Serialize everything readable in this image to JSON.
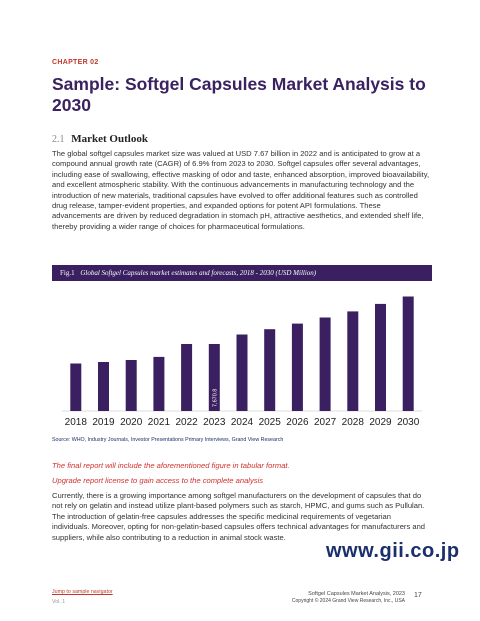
{
  "header": {
    "chapter": "CHAPTER 02",
    "title": "Sample: Softgel Capsules Market Analysis to 2030"
  },
  "section": {
    "number": "2.1",
    "heading": "Market Outlook"
  },
  "paragraphs": {
    "intro": "The global softgel capsules market size was valued at USD 7.67 billion in 2022 and is anticipated to grow at a compound annual growth rate (CAGR) of 6.9% from 2023 to 2030. Softgel capsules offer several advantages, including ease of swallowing, effective masking of odor and taste, enhanced absorption, improved bioavailability, and excellent atmospheric stability. With the continuous advancements in manufacturing technology and the introduction of new materials, traditional capsules have evolved to offer additional features such as controlled drug release, tamper-evident properties, and expanded options for potent API formulations. These advancements are driven by reduced degradation in stomach pH, attractive aesthetics, and extended shelf life, thereby providing a wider range of choices for pharmaceutical formulations.",
    "gelatin": "Currently, there is a growing importance among softgel manufacturers on the development of capsules that do not rely on gelatin and instead utilize plant-based polymers such as starch, HPMC, and gums such as Pullulan. The introduction of gelatin-free capsules addresses the specific medicinal requirements of vegetarian individuals. Moreover, opting for non-gelatin-based capsules offers technical advantages for manufacturers and suppliers, while also contributing to a reduction in animal stock waste."
  },
  "figure": {
    "label": "Fig.1",
    "caption": "Global Softgel Capsules market estimates and forecasts, 2018 - 2030 (USD Million)"
  },
  "chart_data": {
    "type": "bar",
    "title": "Global Softgel Capsules market estimates and forecasts, 2018 - 2030 (USD Million)",
    "categories": [
      "2018",
      "2019",
      "2020",
      "2021",
      "2022",
      "2023",
      "2024",
      "2025",
      "2026",
      "2027",
      "2028",
      "2029",
      "2030"
    ],
    "values": [
      5440,
      5610,
      5840,
      6190,
      7670,
      7670.8,
      8750,
      9360,
      10000,
      10700,
      11400,
      12250,
      13100
    ],
    "data_labels": [
      null,
      null,
      null,
      null,
      null,
      "7,670.8",
      null,
      null,
      null,
      null,
      null,
      null,
      null
    ],
    "ylim": [
      0,
      13500
    ],
    "bar_color": "#3a2060",
    "grid": false,
    "y_axis_shown": false
  },
  "source": "Source: WHO, Industry Journals, Investor Presentations Primary Interviews, Grand View Research",
  "notes": {
    "tabular": "The final report will include the aforementioned figure in tabular format.",
    "upgrade": "Upgrade report license to gain access to the complete analysis"
  },
  "watermark": "www.gii.co.jp",
  "footer": {
    "link": "Jump to sample navigator",
    "vol": "Vol. 1",
    "report": "Softgel Capsules Market Analysis, 2023",
    "copyright": "Copyright © 2024 Grand View Research, Inc., USA",
    "page": "17"
  },
  "colors": {
    "title": "#3a2260",
    "accent_red": "#c0392b",
    "bar": "#3a2060",
    "note_red": "#d0312d"
  }
}
